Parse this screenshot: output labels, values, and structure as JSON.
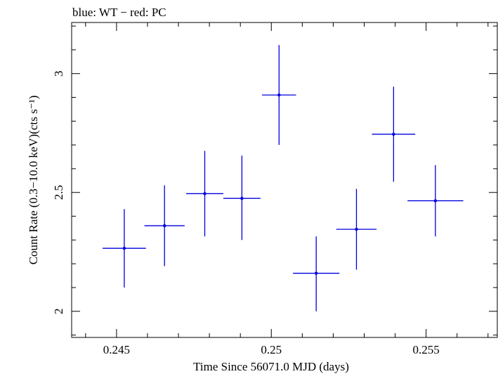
{
  "chart_data": {
    "type": "scatter",
    "title": "blue: WT − red: PC",
    "xlabel": "Time Since 56071.0 MJD (days)",
    "ylabel": "Count Rate (0.3−10.0 keV)(cts s⁻¹)",
    "xlim": [
      0.24355,
      0.2573
    ],
    "ylim": [
      1.89,
      3.215
    ],
    "x_ticks": [
      {
        "value": 0.245,
        "label": "0.245"
      },
      {
        "value": 0.25,
        "label": "0.25"
      },
      {
        "value": 0.255,
        "label": "0.255"
      }
    ],
    "y_ticks": [
      {
        "value": 2,
        "label": "2"
      },
      {
        "value": 2.5,
        "label": "2.5"
      },
      {
        "value": 3,
        "label": "3"
      }
    ],
    "series": [
      {
        "color": "#0000dd",
        "points": [
          {
            "x": 0.24525,
            "y": 2.265,
            "xerr": 0.0007,
            "yerr_lo": 0.165,
            "yerr_hi": 0.165
          },
          {
            "x": 0.24655,
            "y": 2.36,
            "xerr": 0.00065,
            "yerr_lo": 0.17,
            "yerr_hi": 0.17
          },
          {
            "x": 0.24785,
            "y": 2.495,
            "xerr": 0.0006,
            "yerr_lo": 0.18,
            "yerr_hi": 0.18
          },
          {
            "x": 0.24905,
            "y": 2.475,
            "xerr": 0.0006,
            "yerr_lo": 0.175,
            "yerr_hi": 0.18
          },
          {
            "x": 0.25025,
            "y": 2.91,
            "xerr": 0.00055,
            "yerr_lo": 0.21,
            "yerr_hi": 0.21
          },
          {
            "x": 0.25145,
            "y": 2.16,
            "xerr": 0.00075,
            "yerr_lo": 0.16,
            "yerr_hi": 0.155
          },
          {
            "x": 0.25275,
            "y": 2.345,
            "xerr": 0.00065,
            "yerr_lo": 0.17,
            "yerr_hi": 0.17
          },
          {
            "x": 0.25395,
            "y": 2.745,
            "xerr": 0.0007,
            "yerr_lo": 0.2,
            "yerr_hi": 0.2
          },
          {
            "x": 0.2553,
            "y": 2.465,
            "xerr": 0.0009,
            "yerr_lo": 0.15,
            "yerr_hi": 0.15
          }
        ]
      }
    ]
  }
}
